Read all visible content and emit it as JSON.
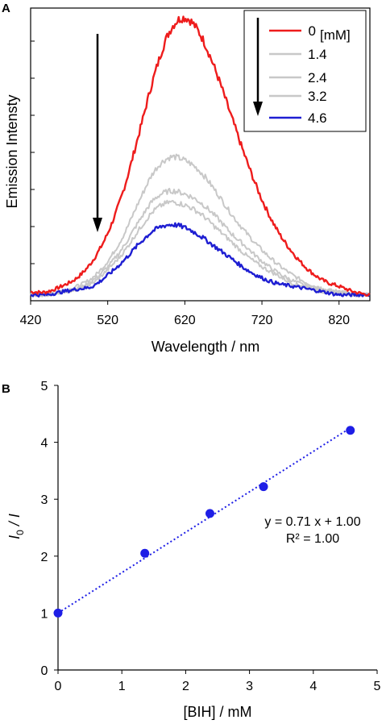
{
  "chart_data": [
    {
      "panel": "A",
      "type": "line",
      "xlabel": "Wavelength / nm",
      "ylabel": "Emission Intensty",
      "xlim": [
        420,
        860
      ],
      "xticks": [
        420,
        520,
        620,
        720,
        820
      ],
      "ylim": [
        0,
        1.0
      ],
      "y_tick_labels_shown": false,
      "grid": false,
      "legend_position": "top-right",
      "legend_header": "[mM]",
      "arrow_annotation": "downward arrows indicate decreasing intensity with increasing concentration",
      "x": [
        440,
        460,
        480,
        500,
        520,
        540,
        560,
        580,
        600,
        620,
        640,
        660,
        680,
        700,
        720,
        740,
        760,
        780,
        800,
        820,
        840,
        860
      ],
      "series": [
        {
          "name": "0",
          "color": "#ee1c1c",
          "values": [
            0.02,
            0.04,
            0.07,
            0.13,
            0.23,
            0.38,
            0.58,
            0.79,
            0.95,
            1.0,
            0.94,
            0.81,
            0.65,
            0.49,
            0.35,
            0.24,
            0.16,
            0.1,
            0.06,
            0.04,
            0.02,
            0.01
          ]
        },
        {
          "name": "1.4",
          "color": "#c8c8c8",
          "values": [
            0.01,
            0.02,
            0.04,
            0.07,
            0.13,
            0.22,
            0.34,
            0.45,
            0.5,
            0.49,
            0.45,
            0.38,
            0.3,
            0.23,
            0.17,
            0.12,
            0.08,
            0.05,
            0.03,
            0.02,
            0.01,
            0.01
          ]
        },
        {
          "name": "2.4",
          "color": "#c8c8c8",
          "values": [
            0.01,
            0.02,
            0.03,
            0.06,
            0.11,
            0.18,
            0.27,
            0.35,
            0.38,
            0.37,
            0.34,
            0.29,
            0.23,
            0.18,
            0.13,
            0.09,
            0.06,
            0.04,
            0.03,
            0.02,
            0.01,
            0.01
          ]
        },
        {
          "name": "3.2",
          "color": "#c8c8c8",
          "values": [
            0.01,
            0.02,
            0.03,
            0.05,
            0.1,
            0.16,
            0.24,
            0.31,
            0.34,
            0.33,
            0.3,
            0.25,
            0.2,
            0.15,
            0.11,
            0.08,
            0.05,
            0.04,
            0.02,
            0.02,
            0.01,
            0.01
          ]
        },
        {
          "name": "4.6",
          "color": "#1e1ed2",
          "values": [
            0.01,
            0.02,
            0.03,
            0.04,
            0.08,
            0.13,
            0.19,
            0.24,
            0.26,
            0.25,
            0.22,
            0.18,
            0.14,
            0.1,
            0.07,
            0.05,
            0.04,
            0.03,
            0.02,
            0.01,
            0.01,
            0.01
          ]
        }
      ]
    },
    {
      "panel": "B",
      "type": "scatter",
      "xlabel": "[BIH] / mM",
      "ylabel": "I0 / I",
      "ylabel_main": "I",
      "ylabel_sub": "0",
      "ylabel_tail": " / I",
      "xlim": [
        0,
        5
      ],
      "ylim": [
        0,
        5
      ],
      "xticks": [
        0,
        1,
        2,
        3,
        4,
        5
      ],
      "yticks": [
        0,
        1,
        2,
        3,
        4,
        5
      ],
      "grid": false,
      "marker_color": "#1e1ee6",
      "points": [
        {
          "x": 0,
          "y": 1.0
        },
        {
          "x": 1.36,
          "y": 2.05
        },
        {
          "x": 2.38,
          "y": 2.75
        },
        {
          "x": 3.22,
          "y": 3.22
        },
        {
          "x": 4.58,
          "y": 4.21
        }
      ],
      "trendline": {
        "slope": 0.71,
        "intercept": 1.0,
        "x_range": [
          0,
          4.58
        ],
        "style": "dotted",
        "color": "#1e1ee6"
      },
      "equation_text": "y = 0.71 x + 1.00",
      "r2_text": "R² = 1.00"
    }
  ]
}
